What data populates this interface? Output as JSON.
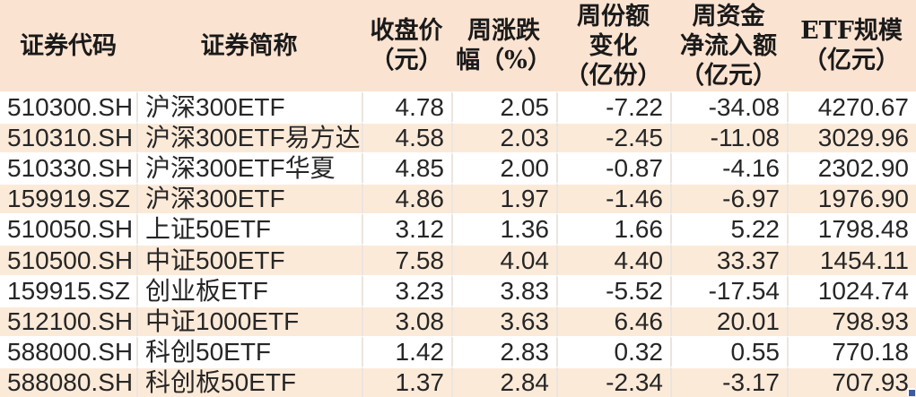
{
  "colors": {
    "header_bg": "#fbe3d1",
    "row_bg": "#ffffff",
    "row_alt_bg": "#fcead9",
    "grid_line": "#ebe5df",
    "row_separator": "#ffffff",
    "text": "#262626",
    "header_text": "#1a1a1a",
    "selection_handle": "#3a5ba9"
  },
  "table": {
    "columns": [
      {
        "key": "code",
        "label": "证券代码"
      },
      {
        "key": "name",
        "label": "证券简称"
      },
      {
        "key": "close",
        "label": [
          "收盘价",
          "（元）"
        ]
      },
      {
        "key": "chg",
        "label": [
          "周涨跌",
          "幅（%）"
        ]
      },
      {
        "key": "share_chg",
        "label": [
          "周份额",
          "变化",
          "（亿份）"
        ]
      },
      {
        "key": "net_inflow",
        "label": [
          "周资金",
          "净流入额",
          "（亿元）"
        ]
      },
      {
        "key": "scale",
        "label": [
          "ETF规模",
          "（亿元）"
        ]
      }
    ],
    "rows": [
      {
        "code": "510300.SH",
        "name": "沪深300ETF",
        "close": "4.78",
        "chg": "2.05",
        "share_chg": "-7.22",
        "net_inflow": "-34.08",
        "scale": "4270.67"
      },
      {
        "code": "510310.SH",
        "name": "沪深300ETF易方达",
        "close": "4.58",
        "chg": "2.03",
        "share_chg": "-2.45",
        "net_inflow": "-11.08",
        "scale": "3029.96"
      },
      {
        "code": "510330.SH",
        "name": "沪深300ETF华夏",
        "close": "4.85",
        "chg": "2.00",
        "share_chg": "-0.87",
        "net_inflow": "-4.16",
        "scale": "2302.90"
      },
      {
        "code": "159919.SZ",
        "name": "沪深300ETF",
        "close": "4.86",
        "chg": "1.97",
        "share_chg": "-1.46",
        "net_inflow": "-6.97",
        "scale": "1976.90"
      },
      {
        "code": "510050.SH",
        "name": "上证50ETF",
        "close": "3.12",
        "chg": "1.36",
        "share_chg": "1.66",
        "net_inflow": "5.22",
        "scale": "1798.48"
      },
      {
        "code": "510500.SH",
        "name": "中证500ETF",
        "close": "7.58",
        "chg": "4.04",
        "share_chg": "4.40",
        "net_inflow": "33.37",
        "scale": "1454.11"
      },
      {
        "code": "159915.SZ",
        "name": "创业板ETF",
        "close": "3.23",
        "chg": "3.83",
        "share_chg": "-5.52",
        "net_inflow": "-17.54",
        "scale": "1024.74"
      },
      {
        "code": "512100.SH",
        "name": "中证1000ETF",
        "close": "3.08",
        "chg": "3.63",
        "share_chg": "6.46",
        "net_inflow": "20.01",
        "scale": "798.93"
      },
      {
        "code": "588000.SH",
        "name": "科创50ETF",
        "close": "1.42",
        "chg": "2.83",
        "share_chg": "0.32",
        "net_inflow": "0.55",
        "scale": "770.18"
      },
      {
        "code": "588080.SH",
        "name": "科创板50ETF",
        "close": "1.37",
        "chg": "2.84",
        "share_chg": "-2.34",
        "net_inflow": "-3.17",
        "scale": "707.93"
      }
    ]
  }
}
